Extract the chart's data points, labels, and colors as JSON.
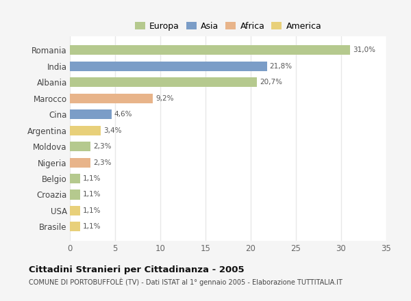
{
  "countries": [
    "Romania",
    "India",
    "Albania",
    "Marocco",
    "Cina",
    "Argentina",
    "Moldova",
    "Nigeria",
    "Belgio",
    "Croazia",
    "USA",
    "Brasile"
  ],
  "values": [
    31.0,
    21.8,
    20.7,
    9.2,
    4.6,
    3.4,
    2.3,
    2.3,
    1.1,
    1.1,
    1.1,
    1.1
  ],
  "labels": [
    "31,0%",
    "21,8%",
    "20,7%",
    "9,2%",
    "4,6%",
    "3,4%",
    "2,3%",
    "2,3%",
    "1,1%",
    "1,1%",
    "1,1%",
    "1,1%"
  ],
  "colors": [
    "#b5c98e",
    "#7b9dc7",
    "#b5c98e",
    "#e8b48a",
    "#7b9dc7",
    "#e8d07a",
    "#b5c98e",
    "#e8b48a",
    "#b5c98e",
    "#b5c98e",
    "#e8d07a",
    "#e8d07a"
  ],
  "legend_labels": [
    "Europa",
    "Asia",
    "Africa",
    "America"
  ],
  "legend_colors": [
    "#b5c98e",
    "#7b9dc7",
    "#e8b48a",
    "#e8d07a"
  ],
  "title": "Cittadini Stranieri per Cittadinanza - 2005",
  "subtitle": "COMUNE DI PORTOBUFFOLÈ (TV) - Dati ISTAT al 1° gennaio 2005 - Elaborazione TUTTITALIA.IT",
  "xlim": [
    0,
    35
  ],
  "xticks": [
    0,
    5,
    10,
    15,
    20,
    25,
    30,
    35
  ],
  "fig_background": "#f5f5f5",
  "plot_background": "#ffffff",
  "grid_color": "#e8e8e8"
}
